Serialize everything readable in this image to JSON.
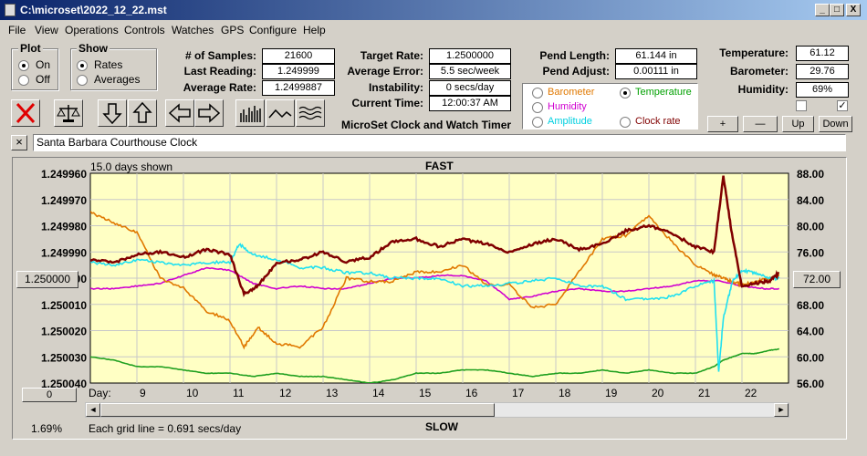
{
  "window": {
    "title": "C:\\microset\\2022_12_22.mst",
    "btn_min": "_",
    "btn_max": "□",
    "btn_close": "X"
  },
  "menu": [
    "File",
    "View",
    "Operations",
    "Controls",
    "Watches",
    "GPS",
    "Configure",
    "Help"
  ],
  "plot_group": {
    "title": "Plot",
    "options": [
      "On",
      "Off"
    ],
    "selected": "On"
  },
  "show_group": {
    "title": "Show",
    "options": [
      "Rates",
      "Averages"
    ],
    "selected": "Rates"
  },
  "stats": {
    "samples_label": "# of Samples:",
    "samples": "21600",
    "last_reading_label": "Last Reading:",
    "last_reading": "1.249999",
    "average_rate_label": "Average Rate:",
    "average_rate": "1.2499887",
    "target_rate_label": "Target Rate:",
    "target_rate": "1.2500000",
    "average_error_label": "Average Error:",
    "average_error": "5.5 sec/week",
    "instability_label": "Instability:",
    "instability": "0 secs/day",
    "current_time_label": "Current Time:",
    "current_time": "12:00:37 AM",
    "pend_length_label": "Pend Length:",
    "pend_length": "61.144 in",
    "pend_adjust_label": "Pend Adjust:",
    "pend_adjust": "0.00111 in",
    "temperature_label": "Temperature:",
    "temperature": "61.12",
    "barometer_label": "Barometer:",
    "barometer": "29.76",
    "humidity_label": "Humidity:",
    "humidity": "69%"
  },
  "app_label": "MicroSet Clock and Watch Timer",
  "series_select": {
    "options": [
      {
        "label": "Barometer",
        "color": "#e07800"
      },
      {
        "label": "Temperature",
        "color": "#00a000"
      },
      {
        "label": "Humidity",
        "color": "#d000d0"
      },
      {
        "label": "Amplitude",
        "color": "#00d0e0"
      },
      {
        "label": "Clock rate",
        "color": "#800000"
      }
    ],
    "selected": "Temperature"
  },
  "scale_buttons": {
    "plus": "+",
    "minus": "—",
    "up": "Up",
    "down": "Down"
  },
  "checkboxes": [
    {
      "checked": false
    },
    {
      "checked": true
    }
  ],
  "clock_name": "Santa Barbara Courthouse Clock",
  "clear_btn": "×",
  "chart_data": {
    "type": "line",
    "title_top": "FAST",
    "title_bottom": "SLOW",
    "days_shown": "15.0 days shown",
    "grid_note": "Each grid line = 0.691 secs/day",
    "left_ticks": [
      "1.249960",
      "1.249970",
      "1.249980",
      "1.249990",
      "1.250000",
      "1.250010",
      "1.250020",
      "1.250030",
      "1.250040"
    ],
    "right_ticks": [
      "88.00",
      "84.00",
      "80.00",
      "76.00",
      "72.00",
      "68.00",
      "64.00",
      "60.00",
      "56.00"
    ],
    "x_label": "Day:",
    "x_ticks": [
      "9",
      "10",
      "11",
      "12",
      "13",
      "14",
      "15",
      "16",
      "17",
      "18",
      "19",
      "20",
      "21",
      "22"
    ],
    "y_left_range": [
      1.24996,
      1.25004
    ],
    "y_right_range": [
      56,
      88
    ],
    "x_range": [
      8.0,
      23.0
    ],
    "series": [
      {
        "name": "Clock rate",
        "color": "#800000",
        "axis": "left",
        "x": [
          8.0,
          8.5,
          9.0,
          9.5,
          10.0,
          10.5,
          11.0,
          11.3,
          11.6,
          12.0,
          12.5,
          13.0,
          13.5,
          14.0,
          14.5,
          15.0,
          15.5,
          16.0,
          16.5,
          17.0,
          17.5,
          18.0,
          18.5,
          19.0,
          19.5,
          20.0,
          20.5,
          21.0,
          21.4,
          21.6,
          21.8,
          22.0,
          22.3,
          22.6,
          22.8
        ],
        "y": [
          1.249993,
          1.249994,
          1.249991,
          1.24999,
          1.249992,
          1.249989,
          1.249991,
          1.250006,
          1.250003,
          1.249994,
          1.249993,
          1.24999,
          1.249994,
          1.249992,
          1.249986,
          1.249985,
          1.249988,
          1.249985,
          1.249987,
          1.24999,
          1.249987,
          1.249985,
          1.249989,
          1.249987,
          1.249982,
          1.24998,
          1.249983,
          1.249988,
          1.24999,
          1.249961,
          1.249985,
          1.250003,
          1.250002,
          1.250001,
          1.249998
        ]
      },
      {
        "name": "Barometer",
        "color": "#e07800",
        "axis": "right",
        "x": [
          8.0,
          8.5,
          9.0,
          9.5,
          10.0,
          10.5,
          11.0,
          11.3,
          11.6,
          12.0,
          12.5,
          13.0,
          13.5,
          14.0,
          14.5,
          15.0,
          15.5,
          16.0,
          16.5,
          17.0,
          17.5,
          18.0,
          18.5,
          19.0,
          19.5,
          20.0,
          20.5,
          21.0,
          21.4,
          21.6,
          21.8,
          22.0,
          22.3,
          22.6,
          22.8
        ],
        "y": [
          82.0,
          80.5,
          79.0,
          72.0,
          70.5,
          67.0,
          65.5,
          61.5,
          64.5,
          62.0,
          61.5,
          64.5,
          72.0,
          71.5,
          71.5,
          73.0,
          73.0,
          74.0,
          71.0,
          71.0,
          67.5,
          68.0,
          73.0,
          78.0,
          78.5,
          81.5,
          77.5,
          74.0,
          72.5,
          72.0,
          71.5,
          71.0,
          71.5,
          72.0,
          72.5
        ]
      },
      {
        "name": "Temperature",
        "color": "#20a020",
        "axis": "right",
        "x": [
          8.0,
          8.5,
          9.0,
          9.5,
          10.0,
          10.5,
          11.0,
          11.5,
          12.0,
          12.5,
          13.0,
          13.5,
          14.0,
          14.5,
          15.0,
          15.5,
          16.0,
          16.5,
          17.0,
          17.5,
          18.0,
          18.5,
          19.0,
          19.5,
          20.0,
          20.5,
          21.0,
          21.4,
          21.6,
          21.8,
          22.0,
          22.3,
          22.6,
          22.8
        ],
        "y": [
          60.0,
          59.5,
          58.5,
          58.5,
          58.0,
          57.5,
          57.5,
          57.0,
          57.5,
          57.0,
          57.0,
          56.5,
          56.0,
          56.5,
          57.5,
          57.5,
          58.0,
          58.0,
          57.5,
          57.0,
          57.5,
          57.5,
          58.0,
          57.5,
          58.0,
          57.5,
          57.5,
          58.5,
          59.5,
          60.0,
          60.5,
          60.5,
          61.0,
          61.2
        ]
      },
      {
        "name": "Humidity",
        "color": "#d000d0",
        "axis": "left",
        "x": [
          8.0,
          8.5,
          9.0,
          9.5,
          10.0,
          10.5,
          11.0,
          11.5,
          12.0,
          12.5,
          13.0,
          13.5,
          14.0,
          14.5,
          15.0,
          15.5,
          16.0,
          16.5,
          17.0,
          17.5,
          18.0,
          18.5,
          19.0,
          19.5,
          20.0,
          20.5,
          21.0,
          21.5,
          22.0,
          22.5,
          22.8
        ],
        "y": [
          1.250004,
          1.250004,
          1.250003,
          1.250002,
          1.249999,
          1.249996,
          1.249997,
          1.250002,
          1.250004,
          1.250003,
          1.250004,
          1.250004,
          1.250002,
          1.25,
          1.25,
          1.249999,
          1.249999,
          1.250001,
          1.250008,
          1.250007,
          1.250005,
          1.250004,
          1.250005,
          1.250005,
          1.250004,
          1.250003,
          1.250001,
          1.250001,
          1.250003,
          1.250004,
          1.250004
        ]
      },
      {
        "name": "Amplitude",
        "color": "#20e0f0",
        "axis": "left",
        "x": [
          8.0,
          8.5,
          9.0,
          9.5,
          10.0,
          10.5,
          11.0,
          11.2,
          11.5,
          12.0,
          12.5,
          13.0,
          13.5,
          14.0,
          14.5,
          15.0,
          15.5,
          16.0,
          16.5,
          17.0,
          17.5,
          18.0,
          18.5,
          19.0,
          19.5,
          20.0,
          20.5,
          21.0,
          21.4,
          21.5,
          21.6,
          21.8,
          22.0,
          22.3,
          22.6,
          22.8
        ],
        "y": [
          1.249994,
          1.249995,
          1.249993,
          1.249994,
          1.249995,
          1.249994,
          1.249994,
          1.249987,
          1.249991,
          1.249993,
          1.249996,
          1.249996,
          1.249998,
          1.249998,
          1.25,
          1.25,
          1.25,
          1.250003,
          1.250003,
          1.250002,
          1.250001,
          1.25,
          1.250003,
          1.250003,
          1.250008,
          1.250008,
          1.250007,
          1.250003,
          1.250001,
          1.250036,
          1.250015,
          1.250001,
          1.249997,
          1.249998,
          1.25,
          1.25
        ]
      }
    ]
  },
  "chart_controls": {
    "left_value": "1.250000",
    "right_value": "72.00",
    "zero_btn": "0",
    "scroll_left": "◄",
    "scroll_right": "►",
    "percent": "1.69%"
  }
}
